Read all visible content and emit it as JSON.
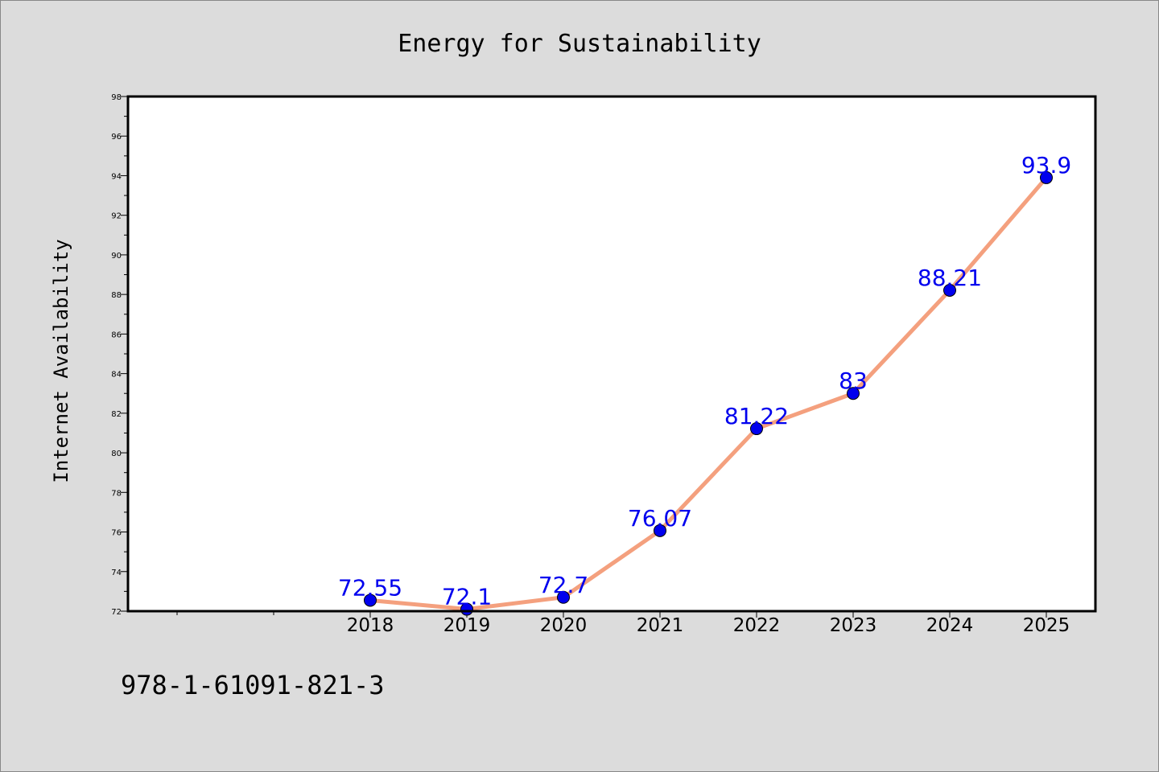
{
  "chart_data": {
    "type": "line",
    "title": "Energy for Sustainability",
    "xlabel": "",
    "ylabel": "Internet Availability",
    "x": [
      "2018",
      "2019",
      "2020",
      "2021",
      "2022",
      "2023",
      "2024",
      "2025"
    ],
    "series": [
      {
        "values": [
          72.55,
          72.1,
          72.7,
          76.07,
          81.22,
          83,
          88.21,
          93.9
        ],
        "labels": [
          "72.55",
          "72.1",
          "72.7",
          "76.07",
          "81.22",
          "83",
          "88.21",
          "93.9"
        ]
      }
    ],
    "ylim": [
      72,
      98
    ],
    "yticks": [
      "72",
      "74",
      "76",
      "78",
      "80",
      "82",
      "84",
      "86",
      "88",
      "90",
      "92",
      "94",
      "96",
      "98"
    ],
    "grid": false,
    "line_color": "#f4a07e",
    "marker_color": "#0000ee",
    "label_color": "#0000ee"
  },
  "footer": {
    "isbn": "978-1-61091-821-3"
  }
}
